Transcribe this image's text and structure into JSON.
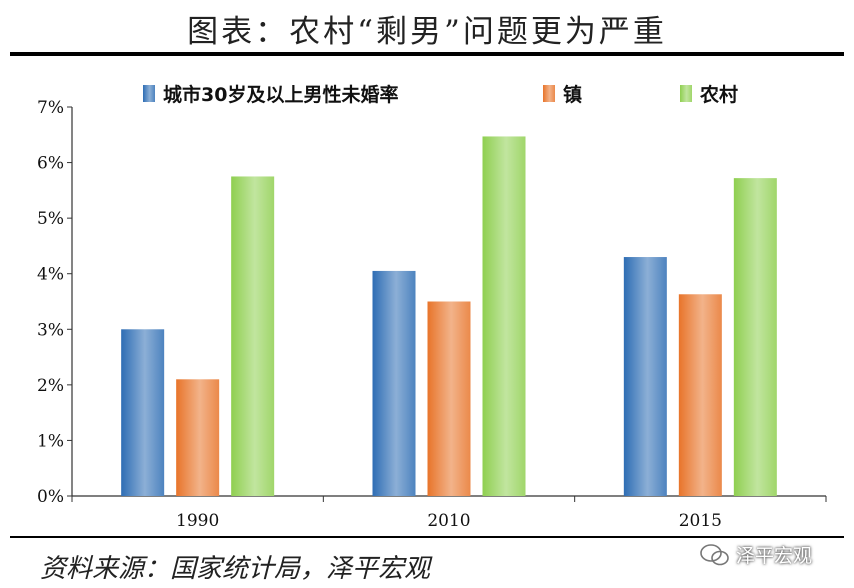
{
  "title": "图表：农村“剩男”问题更为严重",
  "source": "资料来源：国家统计局，泽平宏观",
  "watermark": "泽平宏观",
  "chart_data": {
    "type": "bar",
    "categories": [
      "1990",
      "2010",
      "2015"
    ],
    "series": [
      {
        "name": "城市30岁及以上男性未婚率",
        "values": [
          3.0,
          4.05,
          4.3
        ],
        "color": "#2e6db4"
      },
      {
        "name": "镇",
        "values": [
          2.1,
          3.5,
          3.63
        ],
        "color": "#e8742a"
      },
      {
        "name": "农村",
        "values": [
          5.75,
          6.47,
          5.72
        ],
        "color": "#8fcf50"
      }
    ],
    "ylim": [
      0,
      7
    ],
    "yticks": [
      "0%",
      "1%",
      "2%",
      "3%",
      "4%",
      "5%",
      "6%",
      "7%"
    ],
    "legend_position": "top",
    "grid": false
  }
}
